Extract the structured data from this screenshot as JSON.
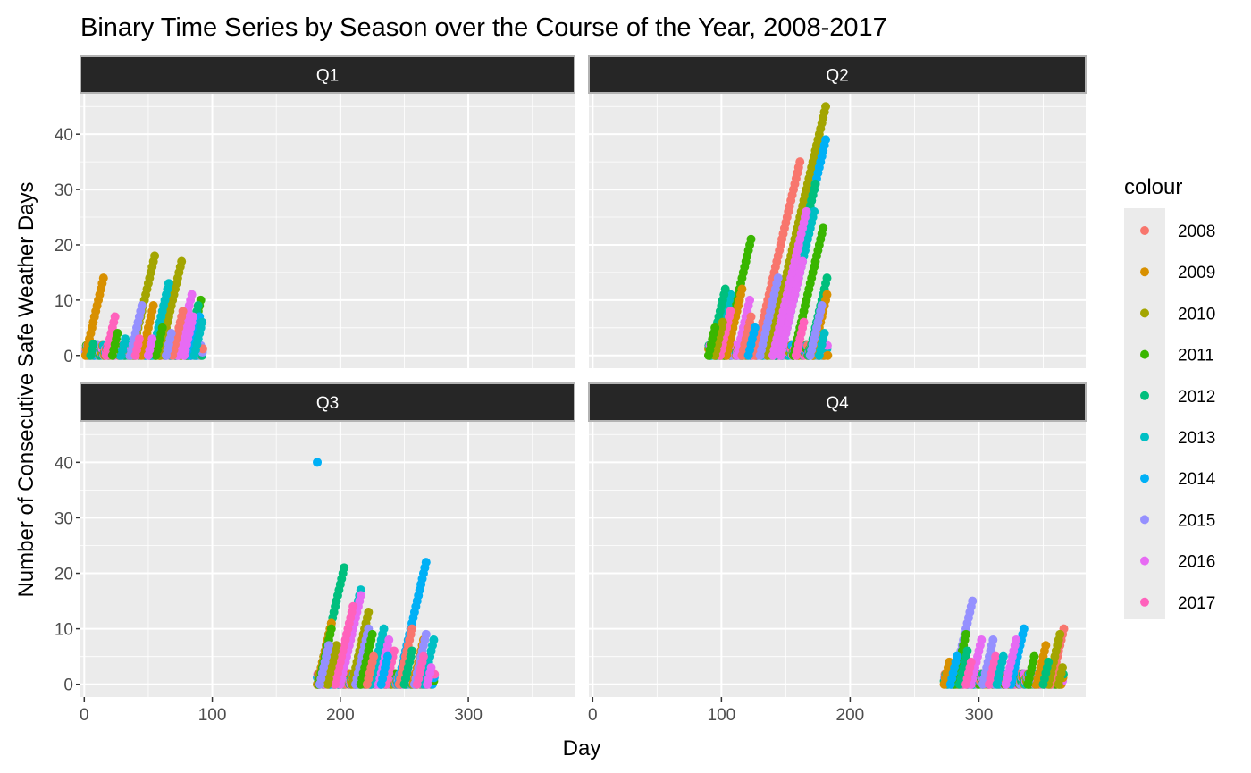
{
  "chart_data": {
    "type": "scatter",
    "title": "Binary Time Series by Season over the Course of the Year, 2008-2017",
    "xlabel": "Day",
    "ylabel": "Number of Consecutive Safe Weather Days",
    "xlim": [
      -3,
      383
    ],
    "ylim": [
      -2.3,
      47.3
    ],
    "x_ticks": [
      0,
      100,
      200,
      300
    ],
    "y_ticks": [
      0,
      10,
      20,
      30,
      40
    ],
    "grid": true,
    "legend": {
      "title": "colour",
      "position": "right",
      "entries": [
        {
          "label": "2008",
          "color": "#F8766D"
        },
        {
          "label": "2009",
          "color": "#D89000"
        },
        {
          "label": "2010",
          "color": "#A3A500"
        },
        {
          "label": "2011",
          "color": "#39B600"
        },
        {
          "label": "2012",
          "color": "#00BF7D"
        },
        {
          "label": "2013",
          "color": "#00BFC4"
        },
        {
          "label": "2014",
          "color": "#00B0F6"
        },
        {
          "label": "2015",
          "color": "#9590FF"
        },
        {
          "label": "2016",
          "color": "#E76BF3"
        },
        {
          "label": "2017",
          "color": "#FF62BC"
        }
      ]
    },
    "panels": [
      {
        "strip": "Q1",
        "runs": [
          {
            "series": "2009",
            "x0": 1,
            "len": 14
          },
          {
            "series": "2010",
            "x0": 37,
            "len": 18
          },
          {
            "series": "2010",
            "x0": 59,
            "len": 17
          },
          {
            "series": "2013",
            "x0": 53,
            "len": 13
          },
          {
            "series": "2011",
            "x0": 81,
            "len": 10
          },
          {
            "series": "2016",
            "x0": 73,
            "len": 11
          },
          {
            "series": "2012",
            "x0": 80,
            "len": 9
          },
          {
            "series": "2015",
            "x0": 36,
            "len": 9
          },
          {
            "series": "2009",
            "x0": 45,
            "len": 9
          },
          {
            "series": "2017",
            "x0": 17,
            "len": 7
          },
          {
            "series": "2008",
            "x0": 69,
            "len": 8
          },
          {
            "series": "2014",
            "x0": 83,
            "len": 7
          },
          {
            "series": "2016",
            "x0": 78,
            "len": 7
          },
          {
            "series": "2011",
            "x0": 22,
            "len": 4
          },
          {
            "series": "2013",
            "x0": 29,
            "len": 3
          },
          {
            "series": "2011",
            "x0": 56,
            "len": 5
          },
          {
            "series": "2015",
            "x0": 64,
            "len": 4
          },
          {
            "series": "2012",
            "x0": 5,
            "len": 2
          },
          {
            "series": "2017",
            "x0": 40,
            "len": 3
          },
          {
            "series": "2016",
            "x0": 50,
            "len": 3
          },
          {
            "series": "2013",
            "x0": 86,
            "len": 6
          }
        ]
      },
      {
        "strip": "Q2",
        "runs": [
          {
            "series": "2010",
            "x0": 136,
            "len": 45
          },
          {
            "series": "2014",
            "x0": 142,
            "len": 39
          },
          {
            "series": "2008",
            "x0": 126,
            "len": 35
          },
          {
            "series": "2012",
            "x0": 142,
            "len": 31
          },
          {
            "series": "2013",
            "x0": 146,
            "len": 26
          },
          {
            "series": "2016",
            "x0": 140,
            "len": 26
          },
          {
            "series": "2011",
            "x0": 102,
            "len": 21
          },
          {
            "series": "2011",
            "x0": 156,
            "len": 23
          },
          {
            "series": "2016",
            "x0": 146,
            "len": 17
          },
          {
            "series": "2012",
            "x0": 168,
            "len": 14
          },
          {
            "series": "2015",
            "x0": 130,
            "len": 14
          },
          {
            "series": "2009",
            "x0": 171,
            "len": 11
          },
          {
            "series": "2013",
            "x0": 96,
            "len": 11
          },
          {
            "series": "2012",
            "x0": 91,
            "len": 12
          },
          {
            "series": "2009",
            "x0": 104,
            "len": 12
          },
          {
            "series": "2015",
            "x0": 169,
            "len": 9
          },
          {
            "series": "2017",
            "x0": 99,
            "len": 8
          },
          {
            "series": "2010",
            "x0": 95,
            "len": 6
          },
          {
            "series": "2016",
            "x0": 112,
            "len": 10
          },
          {
            "series": "2008",
            "x0": 116,
            "len": 7
          },
          {
            "series": "2011",
            "x0": 90,
            "len": 5
          },
          {
            "series": "2017",
            "x0": 158,
            "len": 6
          },
          {
            "series": "2014",
            "x0": 121,
            "len": 5
          },
          {
            "series": "2013",
            "x0": 176,
            "len": 4
          }
        ]
      },
      {
        "strip": "Q3",
        "runs": [
          {
            "series": "2012",
            "x0": 182,
            "len": 21
          },
          {
            "series": "2009",
            "x0": 182,
            "len": 11
          },
          {
            "series": "2013",
            "x0": 199,
            "len": 17
          },
          {
            "series": "2014",
            "x0": 245,
            "len": 22
          },
          {
            "series": "2010",
            "x0": 209,
            "len": 13
          },
          {
            "series": "2016",
            "x0": 200,
            "len": 16
          },
          {
            "series": "2017",
            "x0": 196,
            "len": 14
          },
          {
            "series": "2013",
            "x0": 224,
            "len": 10
          },
          {
            "series": "2008",
            "x0": 246,
            "len": 10
          },
          {
            "series": "2009",
            "x0": 257,
            "len": 8
          },
          {
            "series": "2015",
            "x0": 258,
            "len": 9
          },
          {
            "series": "2013",
            "x0": 265,
            "len": 8
          },
          {
            "series": "2011",
            "x0": 183,
            "len": 10
          },
          {
            "series": "2015",
            "x0": 212,
            "len": 10
          },
          {
            "series": "2016",
            "x0": 230,
            "len": 8
          },
          {
            "series": "2017",
            "x0": 236,
            "len": 6
          },
          {
            "series": "2011",
            "x0": 216,
            "len": 9
          },
          {
            "series": "2010",
            "x0": 190,
            "len": 7
          },
          {
            "series": "2012",
            "x0": 250,
            "len": 6
          },
          {
            "series": "2014",
            "x0": 232,
            "len": 5
          },
          {
            "series": "2008",
            "x0": 221,
            "len": 5
          },
          {
            "series": "2017",
            "x0": 260,
            "len": 5
          },
          {
            "series": "2015",
            "x0": 184,
            "len": 7
          },
          {
            "series": "2016",
            "x0": 268,
            "len": 3
          }
        ],
        "extra_points": [
          {
            "series": "2014",
            "x": 182,
            "y": 40
          }
        ]
      },
      {
        "strip": "Q4",
        "runs": [
          {
            "series": "2015",
            "x0": 280,
            "len": 15
          },
          {
            "series": "2008",
            "x0": 356,
            "len": 10
          },
          {
            "series": "2014",
            "x0": 325,
            "len": 10
          },
          {
            "series": "2010",
            "x0": 354,
            "len": 9
          },
          {
            "series": "2016",
            "x0": 294,
            "len": 8
          },
          {
            "series": "2016",
            "x0": 321,
            "len": 8
          },
          {
            "series": "2011",
            "x0": 281,
            "len": 9
          },
          {
            "series": "2009",
            "x0": 345,
            "len": 7
          },
          {
            "series": "2015",
            "x0": 303,
            "len": 8
          },
          {
            "series": "2012",
            "x0": 285,
            "len": 6
          },
          {
            "series": "2017",
            "x0": 308,
            "len": 5
          },
          {
            "series": "2011",
            "x0": 338,
            "len": 5
          },
          {
            "series": "2013",
            "x0": 314,
            "len": 5
          },
          {
            "series": "2009",
            "x0": 273,
            "len": 4
          },
          {
            "series": "2010",
            "x0": 362,
            "len": 3
          },
          {
            "series": "2014",
            "x0": 278,
            "len": 5
          },
          {
            "series": "2017",
            "x0": 290,
            "len": 4
          },
          {
            "series": "2012",
            "x0": 350,
            "len": 4
          }
        ]
      }
    ]
  }
}
